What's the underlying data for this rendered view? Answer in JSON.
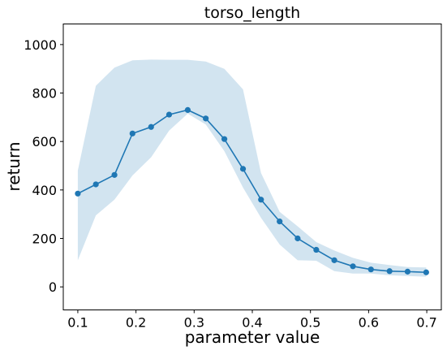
{
  "chart_data": {
    "type": "line",
    "title": "torso_length",
    "xlabel": "parameter value",
    "ylabel": "return",
    "xlim": [
      0.075,
      0.725
    ],
    "ylim": [
      -95,
      1085
    ],
    "xticks": [
      0.1,
      0.2,
      0.3,
      0.4,
      0.5,
      0.6,
      0.7
    ],
    "xtick_labels": [
      "0.1",
      "0.2",
      "0.3",
      "0.4",
      "0.5",
      "0.6",
      "0.7"
    ],
    "yticks": [
      0,
      200,
      400,
      600,
      800,
      1000
    ],
    "ytick_labels": [
      "0",
      "200",
      "400",
      "600",
      "800",
      "1000"
    ],
    "grid": false,
    "line_color": "#1f77b4",
    "band_color": "#1f77b4",
    "series": [
      {
        "x": [
          0.1,
          0.131,
          0.163,
          0.194,
          0.226,
          0.257,
          0.289,
          0.32,
          0.352,
          0.384,
          0.415,
          0.447,
          0.478,
          0.51,
          0.541,
          0.573,
          0.604,
          0.636,
          0.667,
          0.699
        ],
        "y": [
          385,
          423,
          462,
          633,
          660,
          711,
          730,
          695,
          610,
          487,
          360,
          270,
          200,
          153,
          110,
          85,
          72,
          65,
          63,
          60
        ],
        "upper": [
          480,
          830,
          905,
          935,
          938,
          937,
          937,
          930,
          900,
          815,
          470,
          310,
          250,
          185,
          150,
          120,
          100,
          90,
          82,
          80
        ],
        "lower": [
          110,
          295,
          360,
          460,
          535,
          645,
          715,
          670,
          560,
          410,
          285,
          175,
          110,
          108,
          65,
          55,
          55,
          48,
          45,
          42
        ]
      }
    ]
  }
}
